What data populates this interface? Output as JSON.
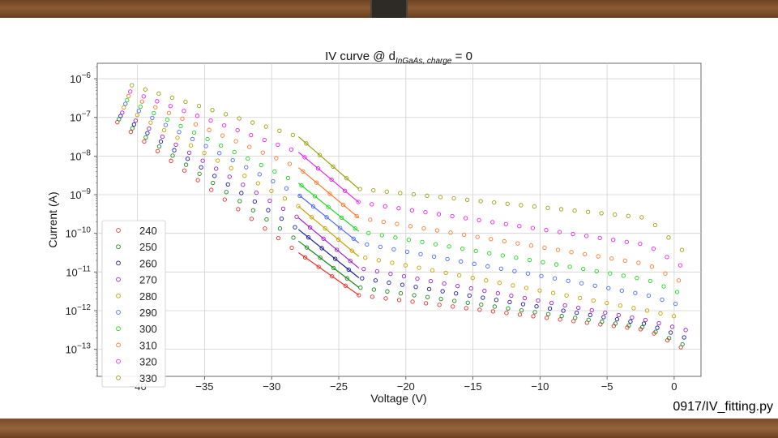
{
  "chart_data": {
    "type": "scatter",
    "title": "IV curve @ d",
    "title_sub": "InGaAs, charge",
    "title_suffix": " = 0",
    "xlabel": "Voltage (V)",
    "ylabel": "Current (A)",
    "xlim": [
      -43,
      2
    ],
    "ylim_log10": [
      -13.7,
      -5.6
    ],
    "xticks": [
      -40,
      -35,
      -30,
      -25,
      -20,
      -15,
      -10,
      -5,
      0
    ],
    "xtick_labels": [
      "−40",
      "−35",
      "−30",
      "−25",
      "−20",
      "−15",
      "−10",
      "−5",
      "0"
    ],
    "yticks_exp": [
      -6,
      -7,
      -8,
      -9,
      -10,
      -11,
      -12,
      -13
    ],
    "grid": true,
    "legend_position": "lower-left",
    "series": [
      {
        "name": "240",
        "color": "#e8332a"
      },
      {
        "name": "250",
        "color": "#1a8a1a"
      },
      {
        "name": "260",
        "color": "#1a1aa0"
      },
      {
        "name": "270",
        "color": "#a020c8"
      },
      {
        "name": "280",
        "color": "#c8a000"
      },
      {
        "name": "290",
        "color": "#4a6aff"
      },
      {
        "name": "300",
        "color": "#20d820"
      },
      {
        "name": "310",
        "color": "#ff7a30"
      },
      {
        "name": "320",
        "color": "#f020f0"
      },
      {
        "name": "330",
        "color": "#9aa010"
      }
    ],
    "curve_model": {
      "description": "log10(I) anchors per series at V = -42, -28, -23.5, -2, 0.8; values estimated from plot",
      "voltages": [
        -42,
        -28,
        -23.5,
        -2,
        0.8
      ],
      "log10_current": [
        [
          -7.0,
          -10.5,
          -11.6,
          -12.5,
          -13.0
        ],
        [
          -6.9,
          -10.2,
          -11.4,
          -12.45,
          -12.9
        ],
        [
          -6.8,
          -9.9,
          -11.15,
          -12.35,
          -12.7
        ],
        [
          -6.7,
          -9.6,
          -10.9,
          -12.25,
          -12.5
        ],
        [
          -6.55,
          -9.3,
          -10.6,
          -12.0,
          -12.2
        ],
        [
          -6.45,
          -9.0,
          -10.25,
          -11.6,
          -11.9
        ],
        [
          -6.35,
          -8.7,
          -9.95,
          -11.2,
          -11.6
        ],
        [
          -6.25,
          -8.3,
          -9.6,
          -10.8,
          -11.3
        ],
        [
          -6.15,
          -7.9,
          -9.2,
          -10.3,
          -10.9
        ],
        [
          -6.0,
          -7.5,
          -8.85,
          -9.6,
          -10.5
        ]
      ]
    }
  },
  "footer": {
    "filename": "0917/IV_fitting.py"
  }
}
